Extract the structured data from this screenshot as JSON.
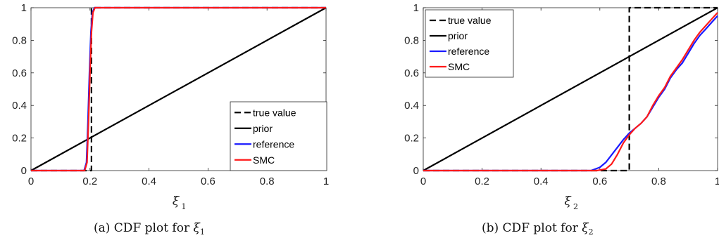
{
  "chart_data": [
    {
      "type": "line",
      "id": "a",
      "caption": "(a) CDF plot for ",
      "caption_symbol": "ξ",
      "caption_sub": "1",
      "xlabel_symbol": "ξ",
      "xlabel_sub": "1",
      "xlim": [
        0,
        1
      ],
      "ylim": [
        0,
        1
      ],
      "xticks": [
        "0",
        "0.2",
        "0.4",
        "0.6",
        "0.8",
        "1"
      ],
      "yticks": [
        "0",
        "0.2",
        "0.4",
        "0.6",
        "0.8",
        "1"
      ],
      "legend_position": "lower-right",
      "series": [
        {
          "name": "true value",
          "color": "#000000",
          "dash": "dashed",
          "x": [
            0,
            0.205,
            0.205,
            1
          ],
          "y": [
            0,
            0,
            1,
            1
          ]
        },
        {
          "name": "prior",
          "color": "#000000",
          "dash": "solid",
          "x": [
            0,
            1
          ],
          "y": [
            0,
            1
          ]
        },
        {
          "name": "reference",
          "color": "#1a1aff",
          "dash": "solid",
          "x": [
            0,
            0.18,
            0.188,
            0.193,
            0.198,
            0.203,
            0.208,
            0.215,
            1
          ],
          "y": [
            0,
            0,
            0.05,
            0.3,
            0.6,
            0.85,
            0.97,
            1,
            1
          ]
        },
        {
          "name": "SMC",
          "color": "#ff1a1a",
          "dash": "solid",
          "x": [
            0,
            0.182,
            0.19,
            0.195,
            0.2,
            0.205,
            0.21,
            0.217,
            1
          ],
          "y": [
            0,
            0,
            0.05,
            0.3,
            0.6,
            0.85,
            0.97,
            1,
            1
          ]
        }
      ]
    },
    {
      "type": "line",
      "id": "b",
      "caption": "(b) CDF plot for ",
      "caption_symbol": "ξ",
      "caption_sub": "2",
      "xlabel_symbol": "ξ",
      "xlabel_sub": "2",
      "xlim": [
        0,
        1
      ],
      "ylim": [
        0,
        1
      ],
      "xticks": [
        "0",
        "0.2",
        "0.4",
        "0.6",
        "0.8",
        "1"
      ],
      "yticks": [
        "0",
        "0.2",
        "0.4",
        "0.6",
        "0.8",
        "1"
      ],
      "legend_position": "top-left",
      "series": [
        {
          "name": "true value",
          "color": "#000000",
          "dash": "dashed",
          "x": [
            0,
            0.7,
            0.7,
            1
          ],
          "y": [
            0,
            0,
            1,
            1
          ]
        },
        {
          "name": "prior",
          "color": "#000000",
          "dash": "solid",
          "x": [
            0,
            1
          ],
          "y": [
            0,
            1
          ]
        },
        {
          "name": "reference",
          "color": "#1a1aff",
          "dash": "solid",
          "x": [
            0,
            0.57,
            0.6,
            0.62,
            0.65,
            0.68,
            0.7,
            0.72,
            0.74,
            0.76,
            0.78,
            0.8,
            0.82,
            0.84,
            0.86,
            0.88,
            0.9,
            0.92,
            0.94,
            0.96,
            0.98,
            1
          ],
          "y": [
            0,
            0,
            0.02,
            0.05,
            0.12,
            0.19,
            0.23,
            0.26,
            0.29,
            0.33,
            0.39,
            0.45,
            0.5,
            0.57,
            0.62,
            0.66,
            0.72,
            0.78,
            0.83,
            0.87,
            0.91,
            0.95
          ]
        },
        {
          "name": "SMC",
          "color": "#ff1a1a",
          "dash": "solid",
          "x": [
            0,
            0.59,
            0.62,
            0.64,
            0.66,
            0.68,
            0.7,
            0.72,
            0.74,
            0.76,
            0.78,
            0.8,
            0.82,
            0.84,
            0.86,
            0.88,
            0.9,
            0.92,
            0.94,
            0.96,
            0.98,
            1
          ],
          "y": [
            0,
            0,
            0.01,
            0.04,
            0.1,
            0.17,
            0.22,
            0.26,
            0.29,
            0.33,
            0.4,
            0.46,
            0.51,
            0.58,
            0.63,
            0.68,
            0.74,
            0.8,
            0.85,
            0.89,
            0.93,
            0.97
          ]
        }
      ]
    }
  ]
}
